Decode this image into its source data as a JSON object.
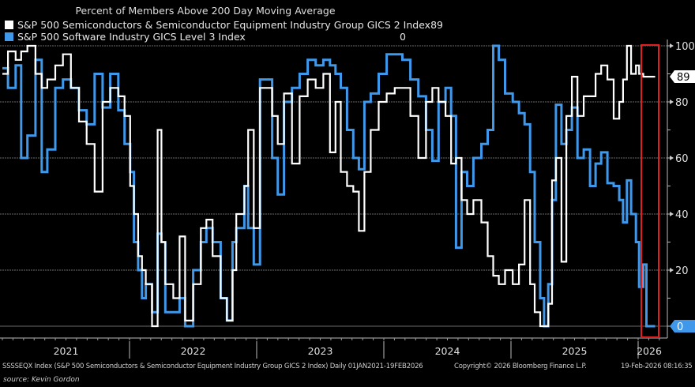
{
  "chart_data": {
    "type": "line",
    "title": "Percent of Members Above 200 Day Moving Average",
    "xlabel": "",
    "ylabel": "",
    "ylim": [
      0,
      100
    ],
    "xlim": [
      "2021-01-01",
      "2026-02-19"
    ],
    "y_ticks": [
      "100",
      "80",
      "60",
      "40",
      "20"
    ],
    "x_ticks": [
      "2021",
      "2022",
      "2023",
      "2024",
      "2025",
      "2026"
    ],
    "grid": true,
    "axis_side": "right",
    "legend_position": "top-left",
    "highlight_box_color": "#e02020",
    "series": [
      {
        "name": "S&P 500 Semiconductors & Semiconductor Equipment Industry Group GICS 2 Index",
        "last_value": "89",
        "color": "#ffffff",
        "points": [
          [
            "2021-01-01",
            90
          ],
          [
            "2021-01-17",
            98
          ],
          [
            "2021-02-08",
            95
          ],
          [
            "2021-02-24",
            98
          ],
          [
            "2021-03-14",
            100
          ],
          [
            "2021-04-06",
            90
          ],
          [
            "2021-04-24",
            85
          ],
          [
            "2021-05-10",
            88
          ],
          [
            "2021-06-02",
            93
          ],
          [
            "2021-06-24",
            97
          ],
          [
            "2021-07-17",
            85
          ],
          [
            "2021-08-09",
            73
          ],
          [
            "2021-08-31",
            65
          ],
          [
            "2021-09-23",
            48
          ],
          [
            "2021-10-16",
            80
          ],
          [
            "2021-11-07",
            85
          ],
          [
            "2021-11-30",
            82
          ],
          [
            "2021-12-18",
            75
          ],
          [
            "2022-01-03",
            50
          ],
          [
            "2022-01-14",
            40
          ],
          [
            "2022-01-26",
            25
          ],
          [
            "2022-02-06",
            20
          ],
          [
            "2022-02-17",
            15
          ],
          [
            "2022-03-07",
            0
          ],
          [
            "2022-03-23",
            70
          ],
          [
            "2022-04-03",
            30
          ],
          [
            "2022-04-14",
            15
          ],
          [
            "2022-04-26",
            15
          ],
          [
            "2022-05-07",
            10
          ],
          [
            "2022-05-25",
            32
          ],
          [
            "2022-06-10",
            2
          ],
          [
            "2022-07-03",
            15
          ],
          [
            "2022-07-25",
            35
          ],
          [
            "2022-08-10",
            38
          ],
          [
            "2022-08-28",
            25
          ],
          [
            "2022-09-20",
            10
          ],
          [
            "2022-10-08",
            2
          ],
          [
            "2022-10-24",
            20
          ],
          [
            "2022-11-04",
            40
          ],
          [
            "2022-11-27",
            50
          ],
          [
            "2022-12-08",
            70
          ],
          [
            "2022-12-24",
            35
          ],
          [
            "2023-01-11",
            85
          ],
          [
            "2023-01-30",
            85
          ],
          [
            "2023-02-15",
            75
          ],
          [
            "2023-03-03",
            65
          ],
          [
            "2023-03-21",
            83
          ],
          [
            "2023-04-13",
            58
          ],
          [
            "2023-05-05",
            82
          ],
          [
            "2023-05-28",
            88
          ],
          [
            "2023-06-20",
            85
          ],
          [
            "2023-07-12",
            90
          ],
          [
            "2023-07-31",
            62
          ],
          [
            "2023-08-16",
            80
          ],
          [
            "2023-08-31",
            55
          ],
          [
            "2023-09-18",
            50
          ],
          [
            "2023-10-06",
            48
          ],
          [
            "2023-10-22",
            34
          ],
          [
            "2023-11-07",
            55
          ],
          [
            "2023-11-25",
            70
          ],
          [
            "2023-12-18",
            80
          ],
          [
            "2024-01-10",
            83
          ],
          [
            "2024-02-02",
            85
          ],
          [
            "2024-02-24",
            85
          ],
          [
            "2024-03-18",
            75
          ],
          [
            "2024-04-10",
            60
          ],
          [
            "2024-05-02",
            80
          ],
          [
            "2024-05-20",
            85
          ],
          [
            "2024-06-07",
            80
          ],
          [
            "2024-06-27",
            75
          ],
          [
            "2024-07-13",
            58
          ],
          [
            "2024-07-27",
            60
          ],
          [
            "2024-08-12",
            45
          ],
          [
            "2024-08-28",
            40
          ],
          [
            "2024-09-15",
            45
          ],
          [
            "2024-10-08",
            37
          ],
          [
            "2024-10-26",
            25
          ],
          [
            "2024-11-11",
            18
          ],
          [
            "2024-11-27",
            15
          ],
          [
            "2024-12-15",
            20
          ],
          [
            "2025-01-06",
            15
          ],
          [
            "2025-01-24",
            22
          ],
          [
            "2025-02-09",
            45
          ],
          [
            "2025-02-25",
            15
          ],
          [
            "2025-03-10",
            5
          ],
          [
            "2025-03-26",
            0
          ],
          [
            "2025-04-06",
            0
          ],
          [
            "2025-04-18",
            8
          ],
          [
            "2025-04-29",
            52
          ],
          [
            "2025-05-10",
            60
          ],
          [
            "2025-05-26",
            23
          ],
          [
            "2025-06-09",
            75
          ],
          [
            "2025-06-25",
            89
          ],
          [
            "2025-07-11",
            75
          ],
          [
            "2025-07-29",
            82
          ],
          [
            "2025-08-16",
            82
          ],
          [
            "2025-09-01",
            90
          ],
          [
            "2025-09-17",
            93
          ],
          [
            "2025-10-05",
            88
          ],
          [
            "2025-10-23",
            74
          ],
          [
            "2025-11-08",
            80
          ],
          [
            "2025-11-19",
            88
          ],
          [
            "2025-11-30",
            100
          ],
          [
            "2025-12-12",
            90
          ],
          [
            "2025-12-26",
            93
          ],
          [
            "2026-01-04",
            90
          ],
          [
            "2026-01-16",
            89
          ],
          [
            "2026-01-25",
            89
          ],
          [
            "2026-02-19",
            89
          ]
        ]
      },
      {
        "name": "S&P 500 Software Industry GICS Level 3 Index",
        "last_value": "0",
        "color": "#3f98ea",
        "points": [
          [
            "2021-01-01",
            92
          ],
          [
            "2021-01-17",
            85
          ],
          [
            "2021-02-08",
            93
          ],
          [
            "2021-02-24",
            60
          ],
          [
            "2021-03-14",
            68
          ],
          [
            "2021-04-06",
            95
          ],
          [
            "2021-04-24",
            55
          ],
          [
            "2021-05-10",
            63
          ],
          [
            "2021-06-02",
            85
          ],
          [
            "2021-06-24",
            88
          ],
          [
            "2021-07-17",
            85
          ],
          [
            "2021-08-09",
            77
          ],
          [
            "2021-08-31",
            72
          ],
          [
            "2021-09-23",
            90
          ],
          [
            "2021-10-16",
            78
          ],
          [
            "2021-11-07",
            90
          ],
          [
            "2021-11-30",
            77
          ],
          [
            "2021-12-18",
            65
          ],
          [
            "2022-01-03",
            55
          ],
          [
            "2022-01-14",
            30
          ],
          [
            "2022-01-26",
            20
          ],
          [
            "2022-02-06",
            10
          ],
          [
            "2022-02-17",
            15
          ],
          [
            "2022-03-07",
            5
          ],
          [
            "2022-03-23",
            33
          ],
          [
            "2022-04-03",
            30
          ],
          [
            "2022-04-14",
            5
          ],
          [
            "2022-04-26",
            5
          ],
          [
            "2022-05-07",
            5
          ],
          [
            "2022-05-25",
            10
          ],
          [
            "2022-06-10",
            0
          ],
          [
            "2022-07-03",
            20
          ],
          [
            "2022-07-25",
            30
          ],
          [
            "2022-08-10",
            35
          ],
          [
            "2022-08-28",
            30
          ],
          [
            "2022-09-20",
            10
          ],
          [
            "2022-10-08",
            2
          ],
          [
            "2022-10-24",
            30
          ],
          [
            "2022-11-04",
            35
          ],
          [
            "2022-11-27",
            50
          ],
          [
            "2022-12-08",
            35
          ],
          [
            "2022-12-24",
            22
          ],
          [
            "2023-01-11",
            88
          ],
          [
            "2023-01-30",
            88
          ],
          [
            "2023-02-15",
            60
          ],
          [
            "2023-03-03",
            47
          ],
          [
            "2023-03-21",
            80
          ],
          [
            "2023-04-13",
            85
          ],
          [
            "2023-05-05",
            90
          ],
          [
            "2023-05-28",
            95
          ],
          [
            "2023-06-20",
            93
          ],
          [
            "2023-07-12",
            95
          ],
          [
            "2023-07-31",
            93
          ],
          [
            "2023-08-16",
            90
          ],
          [
            "2023-08-31",
            85
          ],
          [
            "2023-09-18",
            70
          ],
          [
            "2023-10-06",
            60
          ],
          [
            "2023-10-22",
            56
          ],
          [
            "2023-11-07",
            80
          ],
          [
            "2023-11-25",
            83
          ],
          [
            "2023-12-18",
            90
          ],
          [
            "2024-01-10",
            97
          ],
          [
            "2024-02-02",
            97
          ],
          [
            "2024-02-24",
            95
          ],
          [
            "2024-03-18",
            88
          ],
          [
            "2024-04-10",
            82
          ],
          [
            "2024-05-02",
            70
          ],
          [
            "2024-05-20",
            59
          ],
          [
            "2024-06-07",
            80
          ],
          [
            "2024-06-27",
            85
          ],
          [
            "2024-07-13",
            75
          ],
          [
            "2024-07-27",
            28
          ],
          [
            "2024-08-12",
            55
          ],
          [
            "2024-08-28",
            50
          ],
          [
            "2024-09-15",
            60
          ],
          [
            "2024-10-08",
            65
          ],
          [
            "2024-10-26",
            70
          ],
          [
            "2024-11-11",
            100
          ],
          [
            "2024-11-27",
            95
          ],
          [
            "2024-12-15",
            83
          ],
          [
            "2025-01-06",
            80
          ],
          [
            "2025-01-24",
            76
          ],
          [
            "2025-02-09",
            72
          ],
          [
            "2025-02-25",
            55
          ],
          [
            "2025-03-10",
            30
          ],
          [
            "2025-03-26",
            10
          ],
          [
            "2025-04-06",
            0
          ],
          [
            "2025-04-18",
            15
          ],
          [
            "2025-04-29",
            45
          ],
          [
            "2025-05-10",
            79
          ],
          [
            "2025-05-26",
            65
          ],
          [
            "2025-06-09",
            70
          ],
          [
            "2025-06-25",
            78
          ],
          [
            "2025-07-11",
            60
          ],
          [
            "2025-07-29",
            63
          ],
          [
            "2025-08-16",
            50
          ],
          [
            "2025-09-01",
            58
          ],
          [
            "2025-09-17",
            62
          ],
          [
            "2025-10-05",
            51
          ],
          [
            "2025-10-23",
            50
          ],
          [
            "2025-11-08",
            45
          ],
          [
            "2025-11-19",
            37
          ],
          [
            "2025-11-30",
            52
          ],
          [
            "2025-12-12",
            40
          ],
          [
            "2025-12-26",
            30
          ],
          [
            "2026-01-04",
            14
          ],
          [
            "2026-01-16",
            22
          ],
          [
            "2026-01-25",
            0
          ],
          [
            "2026-02-19",
            0
          ]
        ]
      }
    ]
  },
  "footer": {
    "description": "SSSSEQX Index (S&P 500 Semiconductors & Semiconductor Equipment Industry Group GICS 2 Index) Daily 01JAN2021-19FEB2026",
    "copyright": "Copyright© 2026 Bloomberg Finance L.P.",
    "timestamp": "19-Feb-2026 08:16:35",
    "source": "source: Kevin Gordon"
  }
}
